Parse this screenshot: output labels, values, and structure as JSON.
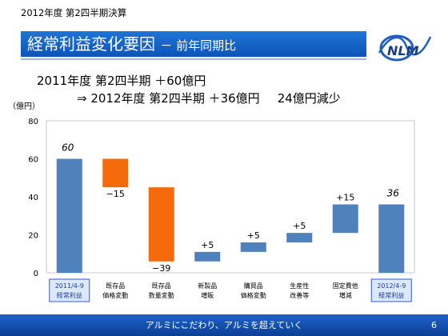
{
  "header": {
    "period_label": "2012年度 第2四半期決算",
    "title": "経常利益変化要因",
    "title_suffix": "－ 前年同期比",
    "logo_text": "NLM"
  },
  "summary": {
    "line1": "2011年度 第2四半期 ＋60億円",
    "line2_main": "⇒ 2012年度 第2四半期 ＋36億円",
    "line2_diff": "24億円減少"
  },
  "chart_data": {
    "type": "bar",
    "subtype": "waterfall",
    "title": "",
    "xlabel": "",
    "ylabel": "（億円）",
    "ylim": [
      0,
      80
    ],
    "yticks": [
      0,
      20,
      40,
      60,
      80
    ],
    "grid": false,
    "legend": "none",
    "categories": [
      [
        "2011/4-9",
        "経常利益"
      ],
      [
        "既存品",
        "価格変動"
      ],
      [
        "既存品",
        "数量変動"
      ],
      [
        "新製品",
        "増販"
      ],
      [
        "購買品",
        "価格変動"
      ],
      [
        "生産性",
        "改善等"
      ],
      [
        "固定費他",
        "増減"
      ],
      [
        "2012/4-9",
        "経常利益"
      ]
    ],
    "bars": [
      {
        "kind": "total",
        "start": 0,
        "end": 60,
        "label": "60"
      },
      {
        "kind": "decrease",
        "start": 60,
        "end": 45,
        "label": "−15"
      },
      {
        "kind": "decrease",
        "start": 45,
        "end": 6,
        "label": "−39"
      },
      {
        "kind": "increase",
        "start": 6,
        "end": 11,
        "label": "+5"
      },
      {
        "kind": "increase",
        "start": 11,
        "end": 16,
        "label": "+5"
      },
      {
        "kind": "increase",
        "start": 16,
        "end": 21,
        "label": "+5"
      },
      {
        "kind": "increase",
        "start": 21,
        "end": 36,
        "label": "+15"
      },
      {
        "kind": "total",
        "start": 0,
        "end": 36,
        "label": "36"
      }
    ],
    "highlighted_categories": [
      0,
      7
    ],
    "colors": {
      "total": "#4f81bd",
      "decrease": "#f56a0a",
      "increase": "#4f81bd"
    }
  },
  "footer": {
    "slogan": "アルミにこだわり、アルミを超えていく",
    "page": "6"
  }
}
